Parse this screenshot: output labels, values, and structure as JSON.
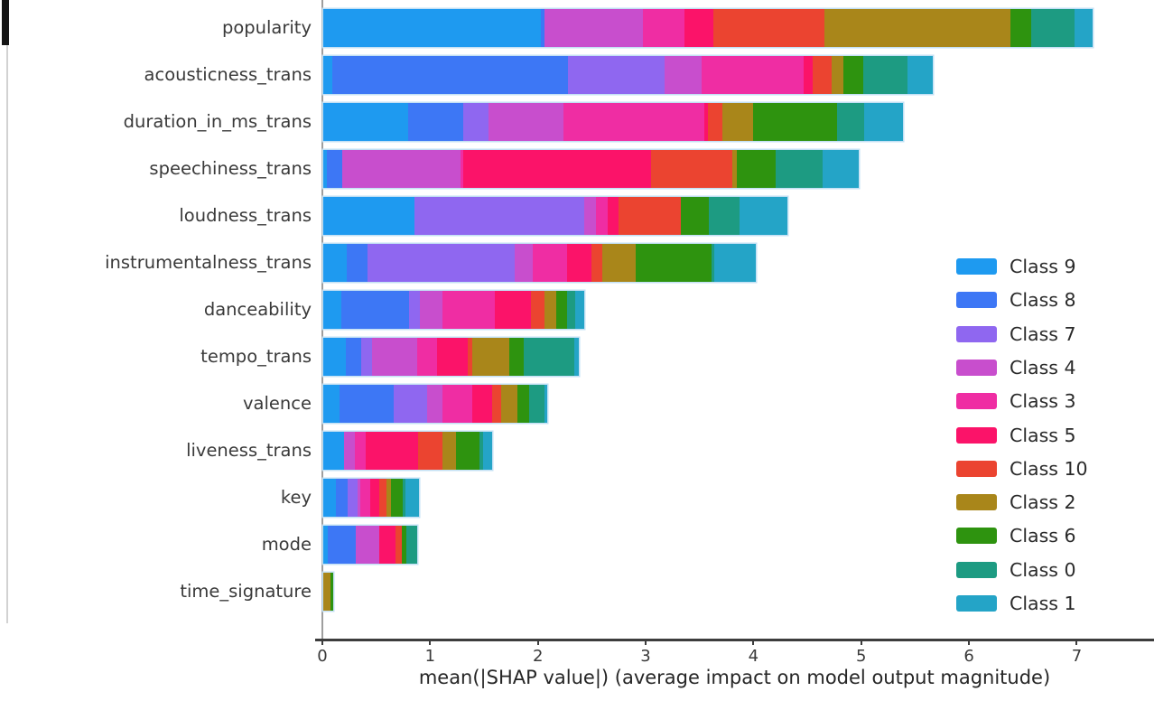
{
  "chart_data": {
    "type": "bar",
    "subtype": "horizontal_stacked",
    "title": "",
    "xlabel": "mean(|SHAP value|) (average impact on model output magnitude)",
    "ylabel": "",
    "xlim": [
      0,
      7.65
    ],
    "xticks": [
      0,
      1,
      2,
      3,
      4,
      5,
      6,
      7
    ],
    "grid": false,
    "legend_position": "right",
    "categories": [
      "popularity",
      "acousticness_trans",
      "duration_in_ms_trans",
      "speechiness_trans",
      "loudness_trans",
      "instrumentalness_trans",
      "danceability",
      "tempo_trans",
      "valence",
      "liveness_trans",
      "key",
      "mode",
      "time_signature"
    ],
    "series": [
      {
        "name": "Class 9",
        "color": "#1e9af0",
        "values": [
          2.02,
          0.08,
          0.79,
          0.03,
          0.85,
          0.22,
          0.17,
          0.21,
          0.15,
          0.19,
          0.12,
          0.04,
          0.0
        ]
      },
      {
        "name": "Class 8",
        "color": "#3d77f5",
        "values": [
          0.03,
          2.19,
          0.51,
          0.15,
          0.0,
          0.19,
          0.63,
          0.14,
          0.5,
          0.0,
          0.11,
          0.26,
          0.0
        ]
      },
      {
        "name": "Class 7",
        "color": "#8f67f0",
        "values": [
          0.0,
          0.9,
          0.23,
          0.0,
          1.57,
          1.37,
          0.1,
          0.1,
          0.31,
          0.0,
          0.09,
          0.0,
          0.0
        ]
      },
      {
        "name": "Class 4",
        "color": "#c84ecd",
        "values": [
          0.92,
          0.34,
          0.7,
          1.09,
          0.11,
          0.16,
          0.21,
          0.42,
          0.15,
          0.1,
          0.02,
          0.22,
          0.0
        ]
      },
      {
        "name": "Class 3",
        "color": "#ef2da3",
        "values": [
          0.38,
          0.95,
          1.31,
          0.03,
          0.11,
          0.32,
          0.48,
          0.19,
          0.27,
          0.1,
          0.1,
          0.0,
          0.0
        ]
      },
      {
        "name": "Class 5",
        "color": "#fb1369",
        "values": [
          0.27,
          0.08,
          0.03,
          1.74,
          0.1,
          0.23,
          0.34,
          0.28,
          0.19,
          0.49,
          0.08,
          0.15,
          0.0
        ]
      },
      {
        "name": "Class 10",
        "color": "#eb4430",
        "values": [
          1.03,
          0.18,
          0.13,
          0.76,
          0.58,
          0.1,
          0.12,
          0.04,
          0.08,
          0.23,
          0.07,
          0.06,
          0.0
        ]
      },
      {
        "name": "Class 2",
        "color": "#a9861a",
        "values": [
          1.73,
          0.11,
          0.29,
          0.04,
          0.0,
          0.31,
          0.11,
          0.35,
          0.15,
          0.12,
          0.04,
          0.0,
          0.07
        ]
      },
      {
        "name": "Class 6",
        "color": "#2e930f",
        "values": [
          0.19,
          0.18,
          0.78,
          0.36,
          0.26,
          0.7,
          0.1,
          0.13,
          0.11,
          0.22,
          0.11,
          0.04,
          0.02
        ]
      },
      {
        "name": "Class 0",
        "color": "#1d9b82",
        "values": [
          0.4,
          0.41,
          0.25,
          0.43,
          0.28,
          0.03,
          0.08,
          0.47,
          0.14,
          0.03,
          0.02,
          0.1,
          0.0
        ]
      },
      {
        "name": "Class 1",
        "color": "#24a4c7",
        "values": [
          0.17,
          0.24,
          0.36,
          0.34,
          0.45,
          0.38,
          0.08,
          0.04,
          0.03,
          0.09,
          0.13,
          0.0,
          0.0
        ]
      }
    ],
    "bar_totals": [
      7.14,
      5.66,
      5.38,
      4.97,
      4.31,
      4.01,
      2.42,
      2.37,
      2.08,
      1.57,
      0.89,
      0.87,
      0.09
    ]
  },
  "layout_colors": {
    "background": "#ffffff",
    "axis_spine": "#3d3d3d",
    "left_spine": "#9e9e9e",
    "tick_text": "#3a3a3a",
    "bar_edge": "#c3e0f4"
  }
}
